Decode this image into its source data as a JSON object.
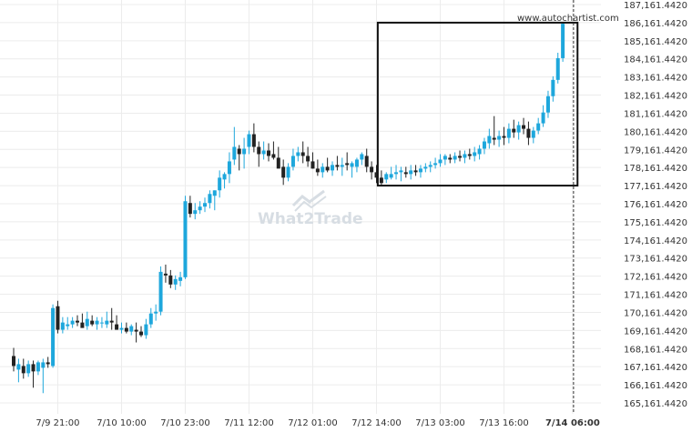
{
  "watermark": {
    "brand": "What2Trade"
  },
  "credit": "www.autochartist.com",
  "colors": {
    "up": "#1ea7dc",
    "down": "#222222",
    "grid": "#ececec",
    "box": "#111111"
  },
  "chart_data": {
    "type": "candlestick",
    "y_ticks": [
      "165,161.4420",
      "166,161.4420",
      "167,161.4420",
      "168,161.4420",
      "169,161.4420",
      "170,161.4420",
      "171,161.4420",
      "172,161.4420",
      "173,161.4420",
      "174,161.4420",
      "175,161.4420",
      "176,161.4420",
      "177,161.4420",
      "178,161.4420",
      "179,161.4420",
      "180,161.4420",
      "181,161.4420",
      "182,161.4420",
      "183,161.4420",
      "184,161.4420",
      "185,161.4420",
      "186,161.4420",
      "187,161.4420"
    ],
    "ylim": [
      165161.442,
      187161.442
    ],
    "x_ticks": [
      {
        "label": "7/9 21:00",
        "bar": 9,
        "bold": false
      },
      {
        "label": "7/10 10:00",
        "bar": 22,
        "bold": false
      },
      {
        "label": "7/10 23:00",
        "bar": 35,
        "bold": false
      },
      {
        "label": "7/11 12:00",
        "bar": 48,
        "bold": false
      },
      {
        "label": "7/12 01:00",
        "bar": 61,
        "bold": false
      },
      {
        "label": "7/12 14:00",
        "bar": 74,
        "bold": false
      },
      {
        "label": "7/13 03:00",
        "bar": 87,
        "bold": false
      },
      {
        "label": "7/13 16:00",
        "bar": 100,
        "bold": false
      },
      {
        "label": "7/14 06:00",
        "bar": 114,
        "bold": true
      }
    ],
    "pattern_box": {
      "start_bar": 75,
      "end_bar": 115,
      "top": 186161.442,
      "bottom": 177161.442
    },
    "last_bar_marker": 114,
    "ohlc": [
      [
        167.75,
        168.2,
        166.9,
        167.2
      ],
      [
        167.0,
        167.6,
        166.3,
        167.3
      ],
      [
        167.2,
        167.6,
        166.5,
        166.8
      ],
      [
        166.8,
        167.5,
        166.6,
        167.3
      ],
      [
        167.3,
        167.5,
        166.0,
        166.9
      ],
      [
        166.9,
        167.5,
        166.7,
        167.4
      ],
      [
        167.1,
        167.6,
        165.7,
        167.4
      ],
      [
        167.4,
        167.7,
        167.1,
        167.3
      ],
      [
        167.2,
        170.6,
        167.1,
        170.4
      ],
      [
        170.5,
        170.8,
        169.0,
        169.2
      ],
      [
        169.2,
        169.9,
        169.0,
        169.6
      ],
      [
        169.4,
        169.9,
        169.2,
        169.5
      ],
      [
        169.5,
        169.9,
        169.3,
        169.7
      ],
      [
        169.7,
        170.0,
        169.4,
        169.6
      ],
      [
        169.6,
        170.1,
        169.4,
        169.3
      ],
      [
        169.4,
        170.2,
        169.2,
        169.8
      ],
      [
        169.7,
        170.0,
        169.4,
        169.5
      ],
      [
        169.5,
        169.9,
        169.2,
        169.7
      ],
      [
        169.6,
        169.9,
        169.3,
        169.6
      ],
      [
        169.5,
        170.2,
        169.3,
        169.7
      ],
      [
        169.7,
        170.4,
        169.2,
        169.6
      ],
      [
        169.5,
        170.0,
        169.2,
        169.2
      ],
      [
        169.2,
        169.6,
        169.0,
        169.3
      ],
      [
        169.3,
        169.6,
        169.0,
        169.1
      ],
      [
        169.1,
        169.5,
        168.9,
        169.4
      ],
      [
        169.2,
        169.6,
        168.5,
        169.1
      ],
      [
        169.1,
        169.4,
        168.8,
        168.9
      ],
      [
        168.9,
        169.8,
        168.7,
        169.5
      ],
      [
        169.5,
        170.4,
        169.3,
        170.1
      ],
      [
        170.1,
        170.6,
        169.7,
        170.2
      ],
      [
        170.2,
        172.7,
        170.0,
        172.4
      ],
      [
        172.3,
        172.8,
        171.8,
        172.2
      ],
      [
        172.2,
        172.5,
        171.5,
        171.7
      ],
      [
        171.7,
        172.2,
        171.4,
        172.0
      ],
      [
        171.9,
        172.4,
        171.6,
        172.1
      ],
      [
        172.1,
        176.6,
        172.0,
        176.3
      ],
      [
        176.2,
        176.6,
        175.4,
        175.6
      ],
      [
        175.6,
        176.2,
        175.3,
        175.8
      ],
      [
        175.8,
        176.3,
        175.6,
        176.0
      ],
      [
        176.0,
        176.5,
        175.7,
        176.2
      ],
      [
        176.2,
        176.9,
        175.9,
        176.7
      ],
      [
        176.6,
        176.9,
        175.8,
        176.9
      ],
      [
        176.9,
        178.0,
        176.5,
        177.6
      ],
      [
        177.5,
        177.9,
        177.0,
        177.8
      ],
      [
        177.8,
        179.0,
        177.3,
        178.5
      ],
      [
        178.6,
        180.4,
        178.3,
        179.3
      ],
      [
        179.2,
        179.4,
        178.0,
        178.9
      ],
      [
        178.9,
        179.8,
        178.1,
        179.2
      ],
      [
        179.3,
        180.2,
        178.9,
        180.0
      ],
      [
        180.0,
        180.6,
        179.0,
        179.3
      ],
      [
        179.3,
        179.6,
        178.2,
        178.9
      ],
      [
        178.9,
        179.6,
        178.6,
        179.1
      ],
      [
        179.1,
        179.5,
        178.5,
        178.8
      ],
      [
        178.9,
        179.6,
        178.6,
        178.7
      ],
      [
        178.7,
        179.3,
        178.2,
        178.1
      ],
      [
        178.2,
        178.6,
        177.2,
        177.6
      ],
      [
        177.6,
        178.4,
        177.4,
        178.2
      ],
      [
        178.2,
        179.2,
        178.0,
        178.8
      ],
      [
        178.8,
        179.3,
        178.5,
        179.0
      ],
      [
        179.0,
        179.6,
        178.4,
        178.8
      ],
      [
        178.8,
        179.3,
        178.2,
        178.5
      ],
      [
        178.5,
        179.0,
        178.1,
        178.1
      ],
      [
        178.1,
        178.6,
        177.7,
        177.9
      ],
      [
        177.9,
        178.4,
        177.6,
        178.2
      ],
      [
        178.2,
        178.7,
        177.9,
        178.0
      ],
      [
        178.0,
        178.5,
        177.7,
        178.3
      ],
      [
        178.3,
        178.8,
        178.0,
        178.2
      ],
      [
        178.2,
        178.7,
        177.7,
        178.3
      ],
      [
        178.4,
        179.0,
        178.0,
        178.3
      ],
      [
        178.2,
        178.5,
        177.6,
        178.4
      ],
      [
        178.2,
        178.7,
        177.9,
        178.6
      ],
      [
        178.6,
        179.0,
        178.3,
        178.9
      ],
      [
        178.8,
        179.2,
        177.9,
        178.2
      ],
      [
        178.2,
        178.5,
        177.5,
        177.9
      ],
      [
        177.9,
        178.3,
        177.3,
        177.6
      ],
      [
        177.6,
        178.0,
        177.2,
        177.3
      ],
      [
        177.5,
        177.9,
        177.3,
        177.8
      ],
      [
        177.6,
        178.2,
        177.5,
        177.8
      ],
      [
        177.8,
        178.3,
        177.5,
        177.9
      ],
      [
        177.9,
        178.2,
        177.4,
        178.0
      ],
      [
        177.9,
        178.2,
        177.6,
        177.8
      ],
      [
        177.8,
        178.3,
        177.5,
        178.0
      ],
      [
        178.0,
        178.3,
        177.7,
        177.9
      ],
      [
        177.9,
        178.3,
        177.6,
        178.1
      ],
      [
        178.1,
        178.4,
        177.9,
        178.2
      ],
      [
        178.2,
        178.5,
        177.9,
        178.3
      ],
      [
        178.3,
        178.7,
        178.1,
        178.4
      ],
      [
        178.4,
        178.9,
        178.2,
        178.6
      ],
      [
        178.6,
        178.9,
        178.3,
        178.8
      ],
      [
        178.7,
        178.9,
        178.4,
        178.6
      ],
      [
        178.6,
        179.0,
        178.4,
        178.8
      ],
      [
        178.8,
        179.1,
        178.5,
        178.7
      ],
      [
        178.7,
        179.1,
        178.4,
        178.9
      ],
      [
        178.9,
        179.2,
        178.6,
        178.8
      ],
      [
        178.8,
        179.3,
        178.5,
        179.0
      ],
      [
        178.9,
        179.4,
        178.6,
        179.2
      ],
      [
        179.2,
        179.8,
        178.9,
        179.6
      ],
      [
        179.5,
        180.3,
        179.2,
        179.9
      ],
      [
        179.8,
        181.0,
        179.4,
        179.7
      ],
      [
        179.7,
        180.2,
        179.3,
        179.9
      ],
      [
        179.9,
        180.4,
        179.4,
        179.8
      ],
      [
        179.8,
        180.6,
        179.5,
        180.3
      ],
      [
        180.3,
        180.8,
        179.8,
        180.1
      ],
      [
        180.1,
        180.7,
        179.7,
        180.5
      ],
      [
        180.5,
        180.9,
        180.0,
        180.3
      ],
      [
        180.3,
        180.7,
        179.4,
        179.8
      ],
      [
        179.8,
        180.4,
        179.5,
        180.2
      ],
      [
        180.2,
        180.9,
        180.0,
        180.6
      ],
      [
        180.6,
        181.6,
        180.4,
        181.2
      ],
      [
        181.2,
        182.4,
        180.9,
        182.1
      ],
      [
        182.1,
        183.2,
        181.8,
        183.0
      ],
      [
        183.0,
        184.5,
        182.8,
        184.2
      ],
      [
        184.2,
        186.2,
        184.0,
        186.1
      ]
    ]
  }
}
